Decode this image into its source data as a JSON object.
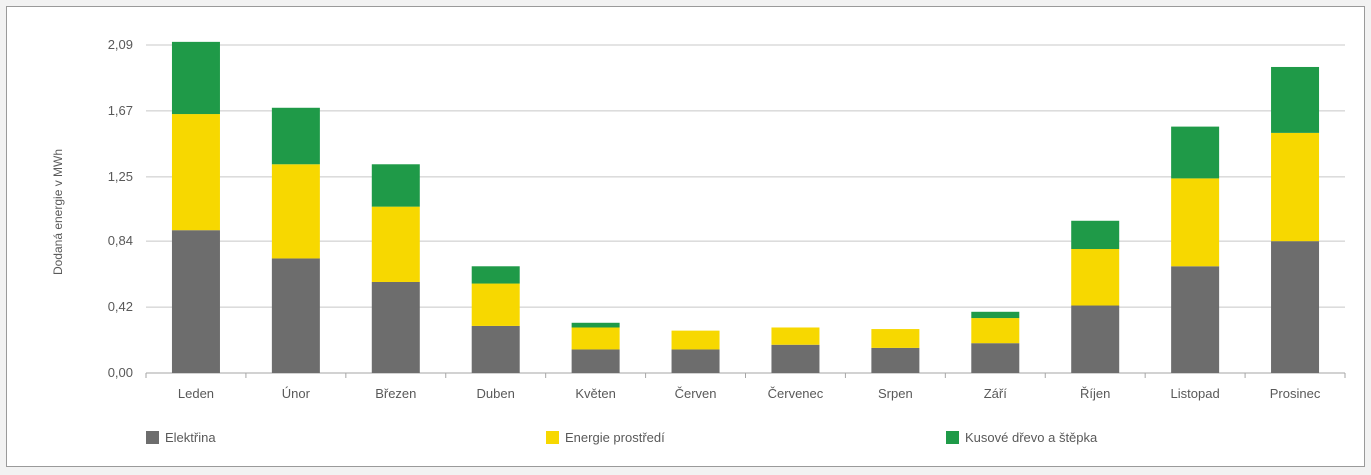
{
  "chart_data": {
    "type": "bar",
    "stacked": true,
    "ylabel": "Dodaná energie v MWh",
    "xlabel": "",
    "ylim": [
      0,
      2.09
    ],
    "y_ticks": [
      "0,00",
      "0,42",
      "0,84",
      "1,25",
      "1,67",
      "2,09"
    ],
    "y_tick_values": [
      0,
      0.42,
      0.84,
      1.25,
      1.67,
      2.09
    ],
    "categories": [
      "Leden",
      "Únor",
      "Březen",
      "Duben",
      "Květen",
      "Červen",
      "Červenec",
      "Srpen",
      "Září",
      "Říjen",
      "Listopad",
      "Prosinec"
    ],
    "series": [
      {
        "name": "Elektřina",
        "color": "#6d6d6d",
        "values": [
          0.91,
          0.73,
          0.58,
          0.3,
          0.15,
          0.15,
          0.18,
          0.16,
          0.19,
          0.43,
          0.68,
          0.84
        ]
      },
      {
        "name": "Energie prostředí",
        "color": "#f7d800",
        "values": [
          0.74,
          0.6,
          0.48,
          0.27,
          0.14,
          0.12,
          0.11,
          0.12,
          0.16,
          0.36,
          0.56,
          0.69
        ]
      },
      {
        "name": "Kusové dřevo a štěpka",
        "color": "#1f9a48",
        "values": [
          0.46,
          0.36,
          0.27,
          0.11,
          0.03,
          0.0,
          0.0,
          0.0,
          0.04,
          0.18,
          0.33,
          0.42
        ]
      }
    ],
    "grid": true,
    "legend_position": "bottom"
  },
  "legend": {
    "items": [
      "Elektřina",
      "Energie prostředí",
      "Kusové dřevo a štěpka"
    ]
  }
}
